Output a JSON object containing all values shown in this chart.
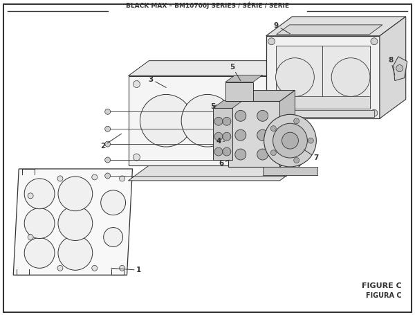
{
  "title": "BLACK MAX – BM10700J SERIES / SÉRIE / SERIE",
  "figure_label": "FIGURE C",
  "figura_label": "FIGURA C",
  "bg_color": "#ffffff",
  "line_color": "#333333",
  "fill_light": "#f5f5f5",
  "fill_mid": "#e8e8e8",
  "fill_dark": "#d0d0d0",
  "fill_darker": "#b8b8b8"
}
